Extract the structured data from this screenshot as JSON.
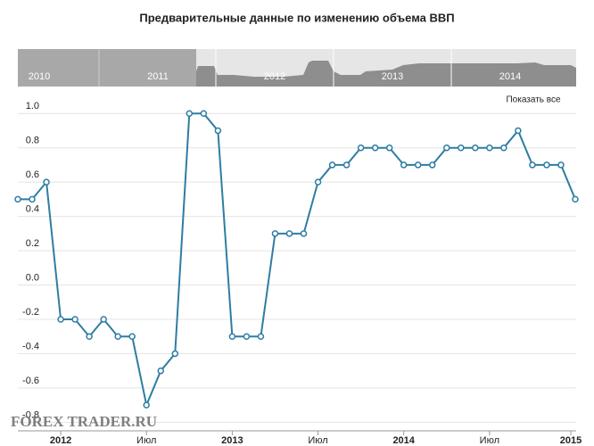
{
  "chart_data": {
    "type": "line",
    "title": "Предварительные данные по изменению объема ВВП",
    "navigator_labels": [
      "2010",
      "2011",
      "2012",
      "2013",
      "2014"
    ],
    "button": "Показать все",
    "watermark": "FOREX TRADER.RU",
    "categories": [
      null,
      null,
      null,
      "2012",
      null,
      null,
      null,
      null,
      null,
      "Июл",
      null,
      null,
      null,
      null,
      null,
      "2013",
      null,
      null,
      null,
      null,
      null,
      "Июл",
      null,
      null,
      null,
      null,
      null,
      "2014",
      null,
      null,
      null,
      null,
      null,
      "Июл",
      null,
      null,
      null,
      null,
      null,
      "2015"
    ],
    "series": [
      {
        "name": "ВВП",
        "color": "#2e7da3",
        "values": [
          0.5,
          0.5,
          0.6,
          -0.2,
          -0.2,
          -0.3,
          -0.2,
          -0.3,
          -0.3,
          -0.7,
          -0.5,
          -0.4,
          1.0,
          1.0,
          0.9,
          -0.3,
          -0.3,
          -0.3,
          0.3,
          0.3,
          0.3,
          0.6,
          0.7,
          0.7,
          0.8,
          0.8,
          0.8,
          0.7,
          0.7,
          0.7,
          0.8,
          0.8,
          0.8,
          0.8,
          0.8,
          0.9,
          0.7,
          0.7,
          0.7,
          0.5
        ]
      }
    ],
    "ylim": [
      -0.85,
      1.1
    ],
    "yticks": [
      {
        "value": 1,
        "label": "1.0"
      },
      0.8,
      0.6,
      0.4,
      0.2,
      {
        "value": 0,
        "label": "0.0"
      },
      -0.2,
      -0.4,
      -0.6,
      -0.8
    ],
    "grid": true
  }
}
